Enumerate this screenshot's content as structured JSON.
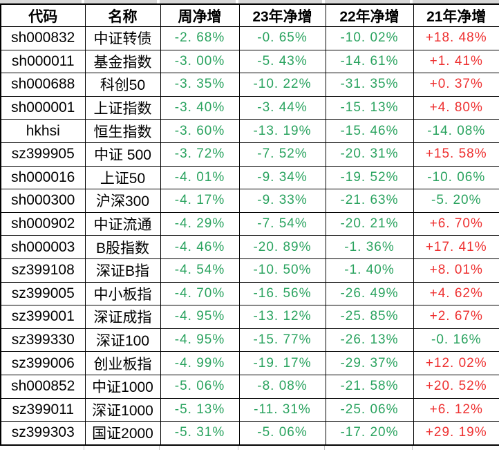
{
  "table": {
    "columns": [
      {
        "key": "code",
        "label": "代码"
      },
      {
        "key": "name",
        "label": "名称"
      },
      {
        "key": "week",
        "label": "周净增"
      },
      {
        "key": "y23",
        "label": "23年净增"
      },
      {
        "key": "y22",
        "label": "22年净增"
      },
      {
        "key": "y21",
        "label": "21年净增"
      }
    ],
    "rows": [
      {
        "code": "sh000832",
        "name": "中证转债",
        "week": "-2. 68%",
        "y23": "-0. 65%",
        "y22": "-10. 02%",
        "y21": "+18. 48%"
      },
      {
        "code": "sh000011",
        "name": "基金指数",
        "week": "-3. 00%",
        "y23": "-5. 43%",
        "y22": "-14. 61%",
        "y21": "+1. 41%"
      },
      {
        "code": "sh000688",
        "name": "科创50",
        "week": "-3. 35%",
        "y23": "-10. 22%",
        "y22": "-31. 35%",
        "y21": "+0. 37%"
      },
      {
        "code": "sh000001",
        "name": "上证指数",
        "week": "-3. 40%",
        "y23": "-3. 44%",
        "y22": "-15. 13%",
        "y21": "+4. 80%"
      },
      {
        "code": "hkhsi",
        "name": "恒生指数",
        "week": "-3. 60%",
        "y23": "-13. 19%",
        "y22": "-15. 46%",
        "y21": "-14. 08%"
      },
      {
        "code": "sz399905",
        "name": "中证 500",
        "week": "-3. 72%",
        "y23": "-7. 52%",
        "y22": "-20. 31%",
        "y21": "+15. 58%"
      },
      {
        "code": "sh000016",
        "name": "上证50",
        "week": "-4. 01%",
        "y23": "-9. 34%",
        "y22": "-19. 52%",
        "y21": "-10. 06%"
      },
      {
        "code": "sh000300",
        "name": "沪深300",
        "week": "-4. 17%",
        "y23": "-9. 33%",
        "y22": "-21. 63%",
        "y21": "-5. 20%"
      },
      {
        "code": "sh000902",
        "name": "中证流通",
        "week": "-4. 29%",
        "y23": "-7. 54%",
        "y22": "-20. 21%",
        "y21": "+6. 70%"
      },
      {
        "code": "sh000003",
        "name": "B股指数",
        "week": "-4. 46%",
        "y23": "-20. 89%",
        "y22": "-1. 36%",
        "y21": "+17. 41%"
      },
      {
        "code": "sz399108",
        "name": "深证B指",
        "week": "-4. 54%",
        "y23": "-10. 50%",
        "y22": "-1. 40%",
        "y21": "+8. 01%"
      },
      {
        "code": "sz399005",
        "name": "中小板指",
        "week": "-4. 70%",
        "y23": "-16. 56%",
        "y22": "-26. 49%",
        "y21": "+4. 62%"
      },
      {
        "code": "sz399001",
        "name": "深证成指",
        "week": "-4. 95%",
        "y23": "-13. 12%",
        "y22": "-25. 85%",
        "y21": "+2. 67%"
      },
      {
        "code": "sz399330",
        "name": "深证100",
        "week": "-4. 95%",
        "y23": "-15. 77%",
        "y22": "-26. 13%",
        "y21": "-0. 16%"
      },
      {
        "code": "sz399006",
        "name": "创业板指",
        "week": "-4. 99%",
        "y23": "-19. 17%",
        "y22": "-29. 37%",
        "y21": "+12. 02%"
      },
      {
        "code": "sh000852",
        "name": "中证1000",
        "week": "-5. 06%",
        "y23": "-8. 08%",
        "y22": "-21. 58%",
        "y21": "+20. 52%"
      },
      {
        "code": "sz399011",
        "name": "深证1000",
        "week": "-5. 13%",
        "y23": "-11. 31%",
        "y22": "-25. 06%",
        "y21": "+6. 12%"
      },
      {
        "code": "sz399303",
        "name": "国证2000",
        "week": "-5. 31%",
        "y23": "-5. 06%",
        "y22": "-17. 20%",
        "y21": "+29. 19%"
      }
    ]
  },
  "colors": {
    "negative_text": "#2aa35f",
    "positive_text": "#ee3030",
    "header_text": "#000000",
    "border": "#000000",
    "strip_gray": "#d8d8d8"
  }
}
